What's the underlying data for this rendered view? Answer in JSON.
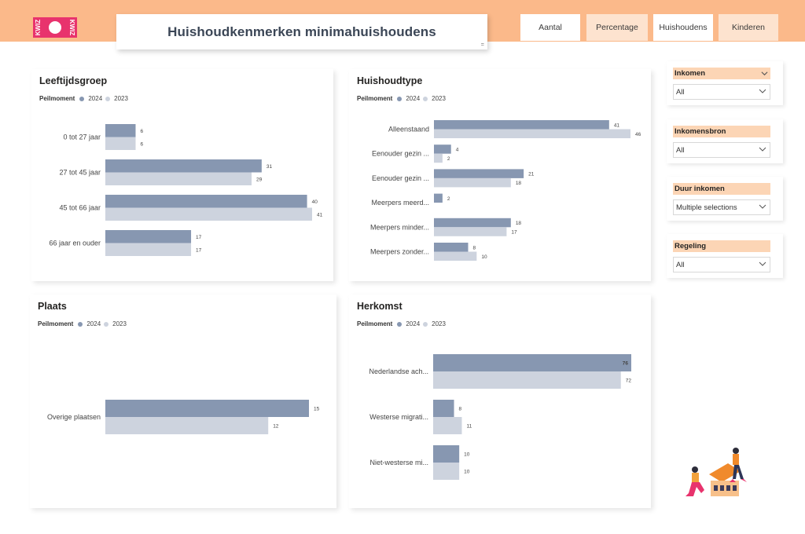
{
  "header": {
    "logo_text": "KWIZ",
    "title": "Huishoudkenmerken minimahuishoudens",
    "tabs": [
      {
        "label": "Aantal",
        "active": true
      },
      {
        "label": "Percentage",
        "active": false
      },
      {
        "label": "Huishoudens",
        "active": true
      },
      {
        "label": "Kinderen",
        "active": false
      }
    ]
  },
  "legend": {
    "title": "Peilmoment",
    "series_a": "2024",
    "series_b": "2023"
  },
  "colors": {
    "series_2024": "#8797b1",
    "series_2023": "#cdd3de",
    "accent": "#fbb98a",
    "slicer_head": "#fcd5b5"
  },
  "filters": [
    {
      "label": "Inkomen",
      "value": "All",
      "head_chevron": true
    },
    {
      "label": "Inkomensbron",
      "value": "All",
      "head_chevron": false
    },
    {
      "label": "Duur inkomen",
      "value": "Multiple selections",
      "head_chevron": false
    },
    {
      "label": "Regeling",
      "value": "All",
      "head_chevron": false
    }
  ],
  "chart_data": [
    {
      "type": "bar",
      "title": "Leeftijdsgroep",
      "categories": [
        "0 tot 27 jaar",
        "27 tot 45 jaar",
        "45 tot 66 jaar",
        "66 jaar en ouder"
      ],
      "series": [
        {
          "name": "2024",
          "values": [
            6,
            31,
            40,
            17
          ]
        },
        {
          "name": "2023",
          "values": [
            6,
            29,
            41,
            17
          ]
        }
      ],
      "xlim": [
        0,
        41
      ]
    },
    {
      "type": "bar",
      "title": "Huishoudtype",
      "categories": [
        "Alleenstaand",
        "Eenouder gezin ...",
        "Eenouder gezin ...",
        "Meerpers meerd...",
        "Meerpers minder...",
        "Meerpers zonder..."
      ],
      "series": [
        {
          "name": "2024",
          "values": [
            41,
            4,
            21,
            2,
            18,
            8
          ]
        },
        {
          "name": "2023",
          "values": [
            46,
            2,
            18,
            null,
            17,
            10
          ]
        }
      ],
      "xlim": [
        0,
        46
      ]
    },
    {
      "type": "bar",
      "title": "Plaats",
      "categories": [
        "Overige plaatsen"
      ],
      "series": [
        {
          "name": "2024",
          "values": [
            15
          ]
        },
        {
          "name": "2023",
          "values": [
            12
          ]
        }
      ],
      "xlim": [
        0,
        15
      ]
    },
    {
      "type": "bar",
      "title": "Herkomst",
      "categories": [
        "Nederlandse ach...",
        "Westerse migrati...",
        "Niet-westerse mi..."
      ],
      "series": [
        {
          "name": "2024",
          "values": [
            76,
            8,
            10
          ]
        },
        {
          "name": "2023",
          "values": [
            72,
            11,
            10
          ]
        }
      ],
      "xlim": [
        0,
        76
      ]
    }
  ]
}
